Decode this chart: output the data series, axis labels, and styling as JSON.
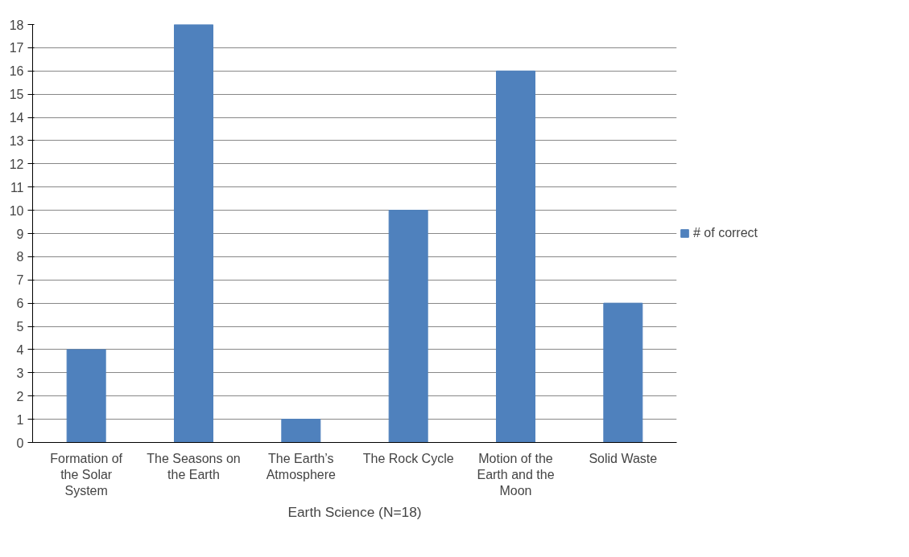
{
  "chart_data": {
    "type": "bar",
    "xlabel": "Earth Science (N=18)",
    "categories": [
      "Formation of the Solar System",
      "The Seasons on the Earth",
      "The Earth’s Atmosphere",
      "The Rock Cycle",
      "Motion of the Earth and the Moon",
      "Solid Waste"
    ],
    "series": [
      {
        "name": "# of correct",
        "color": "#4f81bd",
        "values": [
          4,
          18,
          1,
          10,
          16,
          6
        ]
      }
    ],
    "ylim": [
      0,
      18
    ],
    "yticks": [
      0,
      1,
      2,
      3,
      4,
      5,
      6,
      7,
      8,
      9,
      10,
      11,
      12,
      13,
      14,
      15,
      16,
      17,
      18
    ],
    "grid": "y",
    "legend": "right"
  }
}
